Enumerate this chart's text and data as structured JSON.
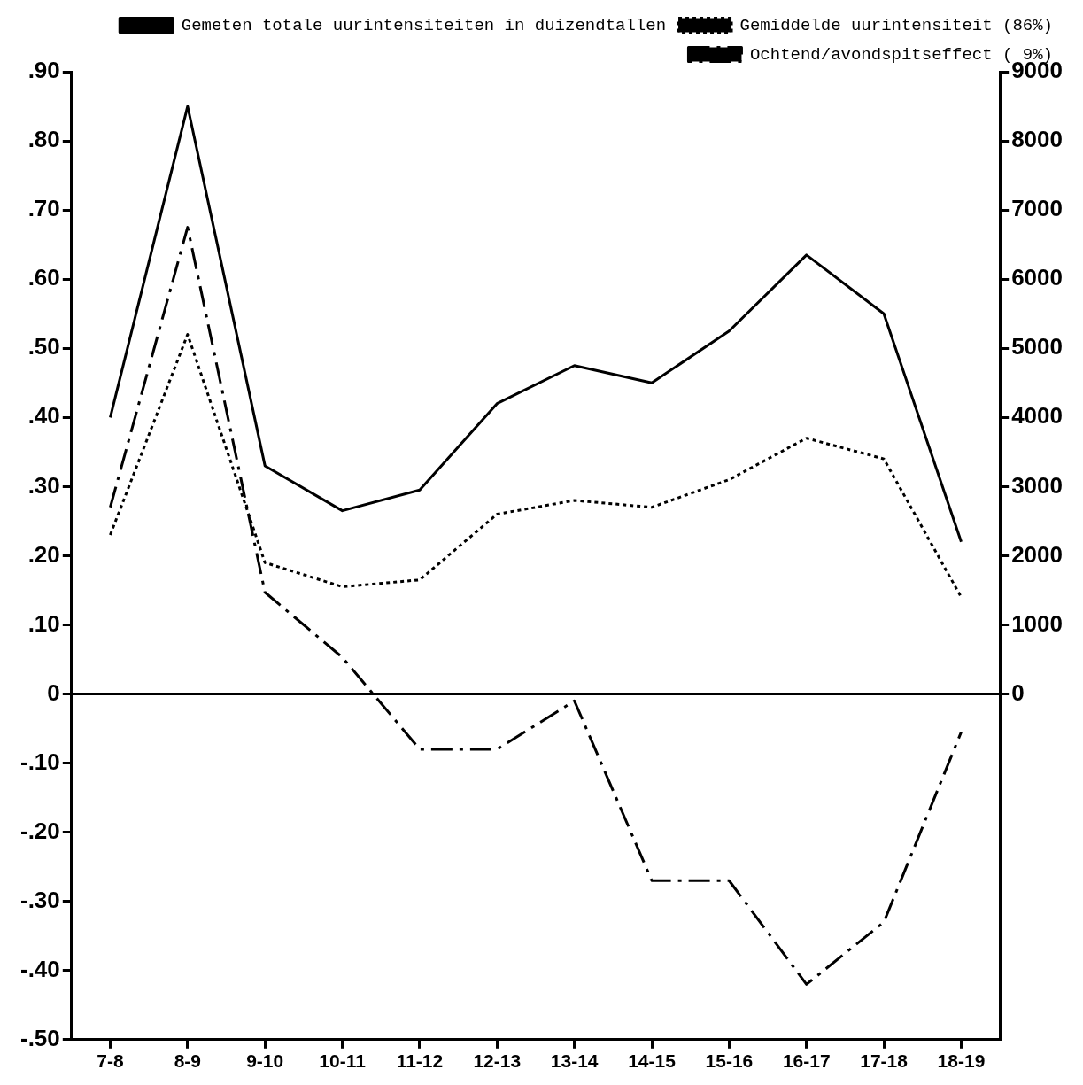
{
  "chart_data": {
    "type": "line",
    "categories": [
      "7-8",
      "8-9",
      "9-10",
      "10-11",
      "11-12",
      "12-13",
      "13-14",
      "14-15",
      "15-16",
      "16-17",
      "17-18",
      "18-19"
    ],
    "series": [
      {
        "name": "Gemeten totale uurintensiteiten in duizendtallen",
        "color": "#000000",
        "axis": "y2",
        "line_style": "solid",
        "values": [
          4000,
          8500,
          3300,
          2650,
          2950,
          4200,
          4750,
          4500,
          5250,
          6350,
          5500,
          2200
        ]
      },
      {
        "name": "Gemiddelde uurintensiteit (86%)",
        "color": "#000000",
        "line_style": "dotted",
        "values": [
          0.23,
          0.52,
          0.19,
          0.155,
          0.165,
          0.26,
          0.28,
          0.27,
          0.31,
          0.37,
          0.34,
          0.14
        ]
      },
      {
        "name": "Ochtend/avondspitseffect ( 9%)",
        "color": "#000000",
        "line_style": "dashed",
        "values": [
          0.27,
          0.675,
          0.147,
          0.053,
          -0.08,
          -0.08,
          -0.01,
          -0.27,
          -0.27,
          -0.42,
          -0.33,
          -0.055
        ]
      }
    ],
    "ylim": [
      -0.5,
      0.9
    ],
    "yticks": [
      {
        "value": 0.9,
        "label": ".90"
      },
      {
        "value": 0.8,
        "label": ".80"
      },
      {
        "value": 0.7,
        "label": ".70"
      },
      {
        "value": 0.6,
        "label": ".60"
      },
      {
        "value": 0.5,
        "label": ".50"
      },
      {
        "value": 0.4,
        "label": ".40"
      },
      {
        "value": 0.3,
        "label": ".30"
      },
      {
        "value": 0.2,
        "label": ".20"
      },
      {
        "value": 0.1,
        "label": ".10"
      },
      0,
      {
        "value": -0.1,
        "label": "-.10"
      },
      {
        "value": -0.2,
        "label": "-.20"
      },
      {
        "value": -0.3,
        "label": "-.30"
      },
      {
        "value": -0.4,
        "label": "-.40"
      },
      {
        "value": -0.5,
        "label": "-.50"
      }
    ],
    "y2lim": [
      -5000,
      9000
    ],
    "y2ticks": [
      0,
      1000,
      2000,
      3000,
      4000,
      5000,
      6000,
      7000,
      8000,
      9000
    ],
    "ref_lines": [
      {
        "axis": "y",
        "value": 0,
        "color": "#000000",
        "line_style": "solid"
      }
    ],
    "grid": false,
    "legend": "top right",
    "marker": "none"
  }
}
